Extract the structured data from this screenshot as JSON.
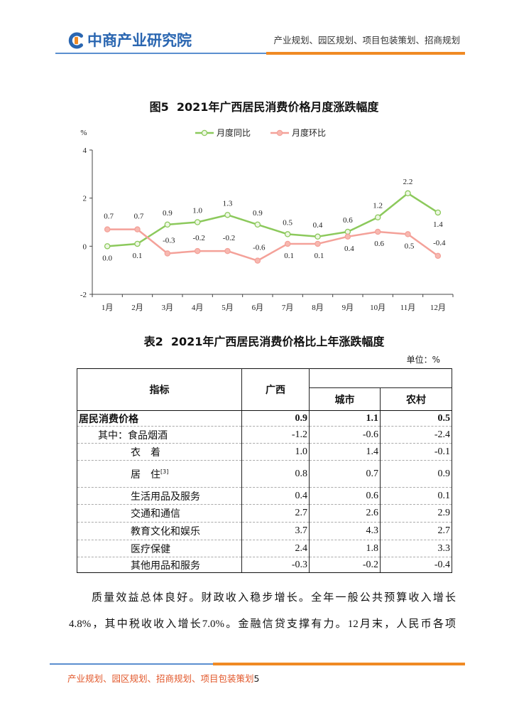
{
  "header": {
    "logo_text": "中商产业研究院",
    "tagline": "产业规划、园区规划、项目包装策划、招商规划"
  },
  "colors": {
    "brand_blue": "#2a66b1",
    "brand_orange": "#f08a24",
    "footer_text": "#e2572a"
  },
  "chart_data": {
    "type": "line",
    "title": "图5  2021年广西居民消费价格月度涨跌幅度",
    "xlabel": "",
    "ylabel": "%",
    "categories": [
      "1月",
      "2月",
      "3月",
      "4月",
      "5月",
      "6月",
      "7月",
      "8月",
      "9月",
      "10月",
      "11月",
      "12月"
    ],
    "ylim": [
      -2,
      4
    ],
    "yticks": [
      -2,
      0,
      2,
      4
    ],
    "grid": false,
    "legend_position": "top",
    "series": [
      {
        "name": "月度同比",
        "color": "#8cc95c",
        "marker_fill": "#eef7e4",
        "values": [
          0.0,
          0.1,
          0.9,
          1.0,
          1.3,
          0.9,
          0.5,
          0.4,
          0.6,
          1.2,
          2.2,
          1.4
        ]
      },
      {
        "name": "月度环比",
        "color": "#f4a199",
        "marker_fill": "#f7b9b1",
        "values": [
          0.7,
          0.7,
          -0.3,
          -0.2,
          -0.2,
          -0.6,
          0.1,
          0.1,
          0.4,
          0.6,
          0.5,
          -0.4
        ]
      }
    ]
  },
  "table": {
    "title": "表2  2021年广西居民消费价格比上年涨跌幅度",
    "unit": "单位：%",
    "headers": {
      "indicator": "指标",
      "guangxi": "广西",
      "urban": "城市",
      "rural": "农村"
    },
    "rows": [
      {
        "label": "居民消费价格",
        "guangxi": "0.9",
        "urban": "1.1",
        "rural": "0.5"
      },
      {
        "label": "其中：食品烟酒",
        "guangxi": "-1.2",
        "urban": "-0.6",
        "rural": "-2.4"
      },
      {
        "label": "衣　着",
        "guangxi": "1.0",
        "urban": "1.4",
        "rural": "-0.1"
      },
      {
        "label": "居　住",
        "note": "[3]",
        "guangxi": "0.8",
        "urban": "0.7",
        "rural": "0.9"
      },
      {
        "label": "生活用品及服务",
        "guangxi": "0.4",
        "urban": "0.6",
        "rural": "0.1"
      },
      {
        "label": "交通和通信",
        "guangxi": "2.7",
        "urban": "2.6",
        "rural": "2.9"
      },
      {
        "label": "教育文化和娱乐",
        "guangxi": "3.7",
        "urban": "4.3",
        "rural": "2.7"
      },
      {
        "label": "医疗保健",
        "guangxi": "2.4",
        "urban": "1.8",
        "rural": "3.3"
      },
      {
        "label": "其他用品和服务",
        "guangxi": "-0.3",
        "urban": "-0.2",
        "rural": "-0.4"
      }
    ]
  },
  "body": {
    "lines": [
      "质量效益总体良好。财政收入稳步增长。全年一般公共预算收入增长",
      "4.8%，其中税收收入增长7.0%。金融信贷支撑有力。12月末，人民币各项"
    ]
  },
  "footer": {
    "tagline": "产业规划、园区规划、招商规划、项目包装策划",
    "page_number": "5"
  }
}
